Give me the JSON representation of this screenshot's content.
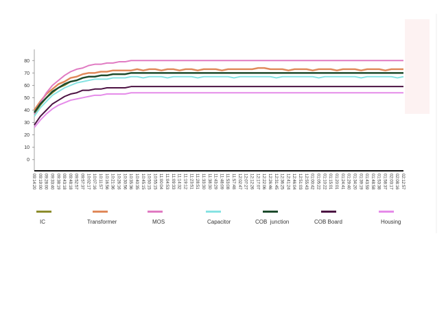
{
  "chart_data": {
    "type": "line",
    "legend": "bottom",
    "grid": false,
    "ylim": [
      -9,
      89
    ],
    "yticks": [
      0,
      10,
      20,
      30,
      40,
      50,
      60,
      70,
      80
    ],
    "categories": [
      "09:14:20",
      "09:19:00",
      "09:28:00",
      "09:33:40",
      "09:38:19",
      "09:43:18",
      "09:48:18",
      "09:52:57",
      "09:57:37",
      "10:02:17",
      "10:07:16",
      "10:11:57",
      "10:16:56",
      "10:21:36",
      "10:26:16",
      "10:30:56",
      "10:35:36",
      "10:40:35",
      "10:45:15",
      "10:50:15",
      "10:55:15",
      "11:00:04",
      "11:04:53",
      "11:09:33",
      "11:14:32",
      "11:19:12",
      "11:23:51",
      "11:28:51",
      "11:33:30",
      "11:38:30",
      "11:43:29",
      "11:48:09",
      "11:53:08",
      "11:57:48",
      "12:02:47",
      "12:07:27",
      "12:12:26",
      "12:17:07",
      "12:22:06",
      "12:26:46",
      "12:31:45",
      "12:36:25",
      "12:41:24",
      "12:46:04",
      "12:51:03",
      "12:55:43",
      "01:00:42",
      "01:05:22",
      "01:10:22",
      "01:15:01",
      "01:20:01",
      "01:24:41",
      "01:29:40",
      "01:34:20",
      "01:39:19",
      "01:43:59",
      "01:48:58",
      "01:53:38",
      "01:58:37",
      "02:03:17",
      "02:08:16",
      "02:12:57"
    ],
    "series": [
      {
        "name": "IC",
        "color": "#8c8c2c",
        "width": 2,
        "values": [
          37,
          44,
          50,
          54,
          58,
          60,
          63,
          64,
          66,
          67,
          67,
          68,
          68,
          69,
          69,
          69,
          70,
          70,
          70,
          70,
          70,
          70,
          70,
          70,
          70,
          70,
          70,
          70,
          70,
          70,
          70,
          70,
          70,
          70,
          70,
          70,
          70,
          70,
          70,
          70,
          70,
          70,
          70,
          70,
          70,
          70,
          70,
          70,
          70,
          70,
          70,
          70,
          70,
          70,
          70,
          70,
          70,
          70,
          70,
          70,
          70,
          70
        ]
      },
      {
        "name": "Transformer",
        "color": "#e0895a",
        "width": 2.5,
        "values": [
          40,
          47,
          53,
          57,
          61,
          63,
          66,
          67,
          69,
          70,
          70,
          71,
          71,
          72,
          72,
          72,
          72,
          73,
          72,
          73,
          73,
          72,
          73,
          73,
          72,
          73,
          73,
          72,
          73,
          73,
          73,
          72,
          73,
          73,
          73,
          73,
          73,
          74,
          74,
          73,
          73,
          73,
          72,
          73,
          73,
          73,
          72,
          73,
          73,
          73,
          72,
          73,
          73,
          73,
          72,
          73,
          73,
          73,
          72,
          73,
          73,
          73
        ]
      },
      {
        "name": "MOS",
        "color": "#e07ac2",
        "width": 2,
        "values": [
          37,
          46,
          54,
          60,
          64,
          68,
          71,
          73,
          74,
          76,
          77,
          77,
          78,
          78,
          79,
          79,
          80,
          80,
          80,
          80,
          80,
          80,
          80,
          80,
          80,
          80,
          80,
          80,
          80,
          80,
          80,
          80,
          80,
          80,
          80,
          80,
          80,
          80,
          80,
          80,
          80,
          80,
          80,
          80,
          80,
          80,
          80,
          80,
          80,
          80,
          80,
          80,
          80,
          80,
          80,
          80,
          80,
          80,
          80,
          80,
          80,
          80
        ]
      },
      {
        "name": "Capacitor",
        "color": "#86e3e3",
        "width": 2,
        "values": [
          35,
          42,
          47,
          52,
          55,
          58,
          60,
          62,
          63,
          64,
          65,
          65,
          65,
          66,
          66,
          66,
          67,
          67,
          66,
          67,
          67,
          67,
          66,
          67,
          67,
          67,
          67,
          66,
          67,
          67,
          67,
          67,
          67,
          66,
          67,
          67,
          67,
          67,
          67,
          67,
          66,
          67,
          67,
          67,
          67,
          67,
          67,
          66,
          67,
          67,
          67,
          67,
          67,
          67,
          66,
          67,
          67,
          67,
          67,
          67,
          66,
          67
        ]
      },
      {
        "name": "COB  junction",
        "color": "#1d4a2c",
        "width": 2.5,
        "values": [
          38,
          45,
          50,
          55,
          58,
          61,
          63,
          64,
          66,
          67,
          67,
          68,
          68,
          69,
          69,
          69,
          70,
          70,
          70,
          70,
          70,
          70,
          70,
          70,
          70,
          70,
          70,
          70,
          70,
          70,
          70,
          70,
          70,
          70,
          70,
          70,
          70,
          70,
          70,
          70,
          70,
          70,
          70,
          70,
          70,
          70,
          70,
          70,
          70,
          70,
          70,
          70,
          70,
          70,
          70,
          70,
          70,
          70,
          70,
          70,
          70,
          70
        ]
      },
      {
        "name": "COB Board",
        "color": "#4b1142",
        "width": 2,
        "values": [
          28,
          35,
          40,
          45,
          48,
          51,
          53,
          54,
          56,
          56,
          57,
          57,
          58,
          58,
          58,
          58,
          59,
          59,
          59,
          59,
          59,
          59,
          59,
          59,
          59,
          59,
          59,
          59,
          59,
          59,
          59,
          59,
          59,
          59,
          59,
          59,
          59,
          59,
          59,
          59,
          59,
          59,
          59,
          59,
          59,
          59,
          59,
          59,
          59,
          59,
          59,
          59,
          59,
          59,
          59,
          59,
          59,
          59,
          59,
          59,
          59,
          59
        ]
      },
      {
        "name": "Housing",
        "color": "#e58be9",
        "width": 2,
        "values": [
          26,
          32,
          37,
          41,
          44,
          46,
          48,
          49,
          50,
          51,
          52,
          52,
          53,
          53,
          53,
          53,
          54,
          54,
          54,
          54,
          54,
          54,
          54,
          54,
          54,
          54,
          54,
          54,
          54,
          54,
          54,
          54,
          54,
          54,
          54,
          54,
          54,
          54,
          54,
          54,
          54,
          54,
          54,
          54,
          54,
          54,
          54,
          54,
          54,
          54,
          54,
          54,
          54,
          54,
          54,
          54,
          54,
          54,
          54,
          54,
          54,
          54
        ]
      }
    ]
  }
}
